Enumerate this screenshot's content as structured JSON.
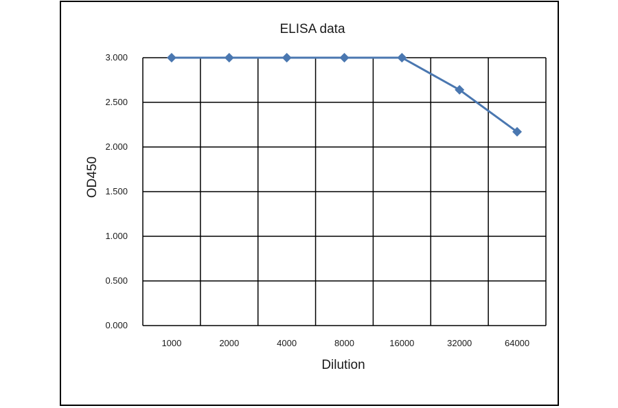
{
  "chart_data": {
    "type": "line",
    "title": "ELISA data",
    "xlabel": "Dilution",
    "ylabel": "OD450",
    "categories": [
      "1000",
      "2000",
      "4000",
      "8000",
      "16000",
      "32000",
      "64000"
    ],
    "y_ticks": [
      "0.000",
      "0.500",
      "1.000",
      "1.500",
      "2.000",
      "2.500",
      "3.000"
    ],
    "ylim": [
      0,
      3
    ],
    "grid": true,
    "series": [
      {
        "values": [
          3.0,
          3.0,
          3.0,
          3.0,
          3.0,
          2.64,
          2.17
        ]
      }
    ],
    "colors": {
      "line": "#4a77b0",
      "grid": "#000000",
      "frame": "#000000"
    }
  }
}
